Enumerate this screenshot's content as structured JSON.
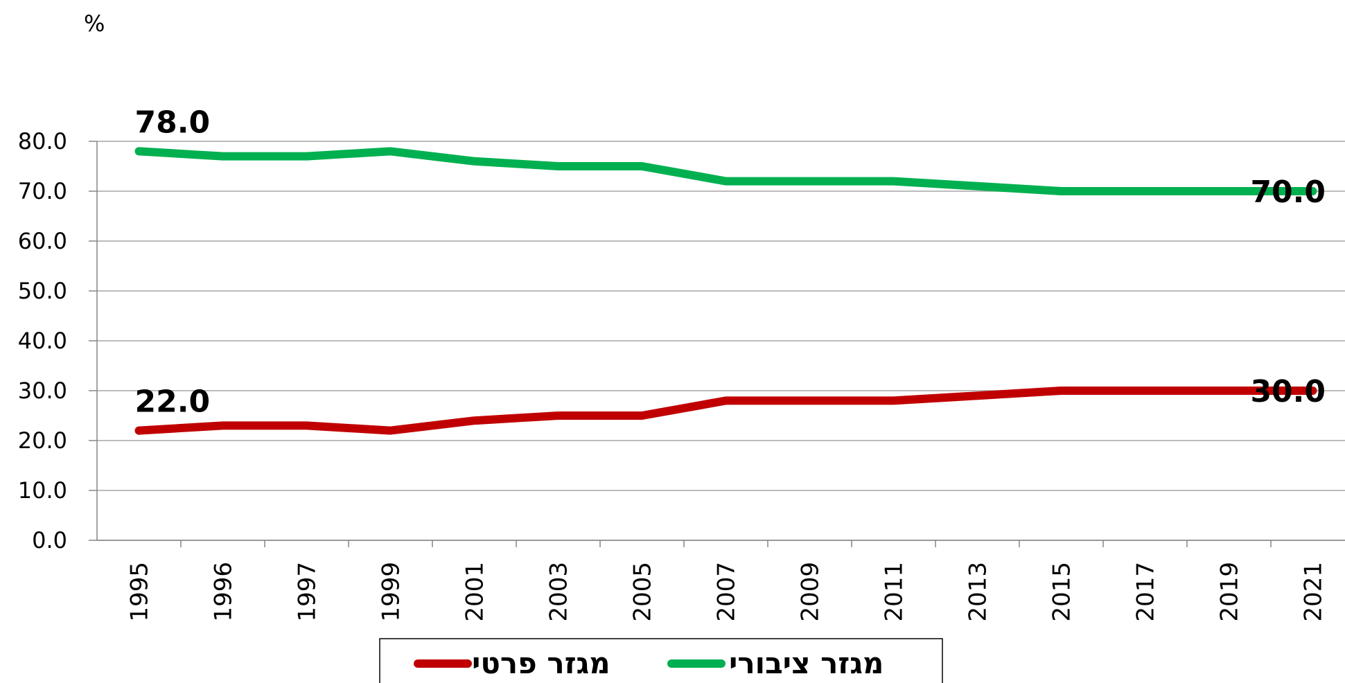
{
  "chart_data": {
    "type": "line",
    "unit_label": "%",
    "categories": [
      "1995",
      "1996",
      "1997",
      "1999",
      "2001",
      "2003",
      "2005",
      "2007",
      "2009",
      "2011",
      "2013",
      "2015",
      "2017",
      "2019",
      "2021"
    ],
    "series": [
      {
        "name": "מגזר ציבורי",
        "color": "#00b050",
        "values": [
          78,
          77,
          77,
          78,
          76,
          75,
          75,
          72,
          72,
          72,
          71,
          70,
          70,
          70,
          70
        ],
        "value_labels": [
          "78.0",
          null,
          null,
          null,
          null,
          null,
          null,
          null,
          null,
          null,
          null,
          null,
          null,
          null,
          "70.0"
        ]
      },
      {
        "name": "מגזר פרטי",
        "color": "#c00000",
        "values": [
          22,
          23,
          23,
          22,
          24,
          25,
          25,
          28,
          28,
          28,
          29,
          30,
          30,
          30,
          30
        ],
        "value_labels": [
          "22.0",
          null,
          null,
          null,
          null,
          null,
          null,
          null,
          null,
          null,
          null,
          null,
          null,
          null,
          "30.0"
        ]
      }
    ],
    "ylim": [
      0,
      80
    ],
    "yticks": [
      {
        "value": 0,
        "label": "0.0"
      },
      {
        "value": 10,
        "label": "10.0"
      },
      {
        "value": 20,
        "label": "20.0"
      },
      {
        "value": 30,
        "label": "30.0"
      },
      {
        "value": 40,
        "label": "40.0"
      },
      {
        "value": 50,
        "label": "50.0"
      },
      {
        "value": 60,
        "label": "60.0"
      },
      {
        "value": 70,
        "label": "70.0"
      },
      {
        "value": 80,
        "label": "80.0"
      }
    ],
    "grid": true
  }
}
